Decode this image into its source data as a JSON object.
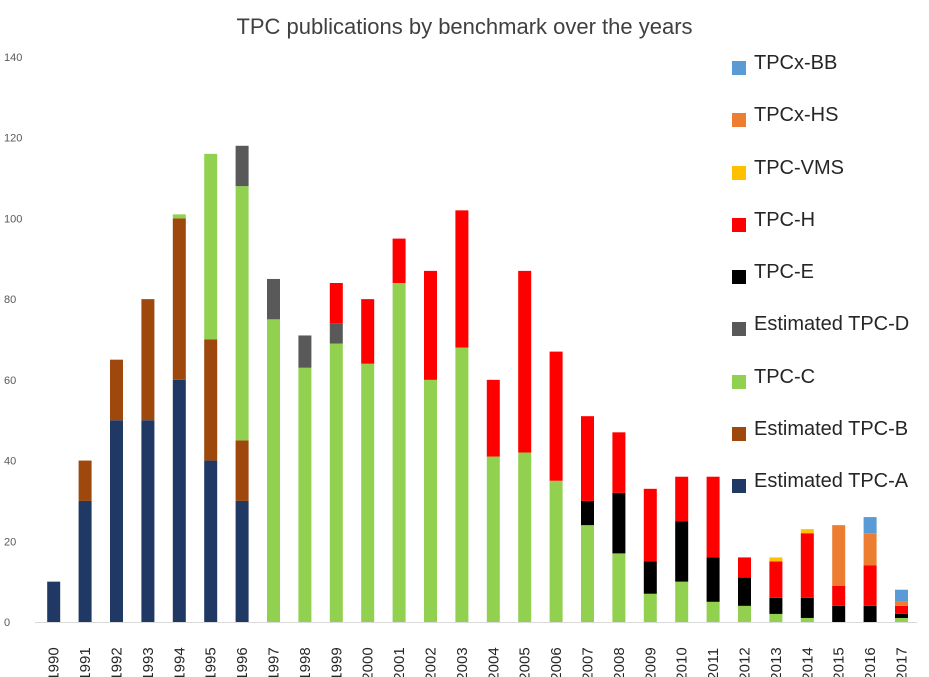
{
  "chart_data": {
    "type": "bar",
    "stacked": true,
    "title": "TPC publications by benchmark over the years",
    "xlabel": "",
    "ylabel": "",
    "ylim": [
      0,
      140
    ],
    "yticks": [
      0,
      20,
      40,
      60,
      80,
      100,
      120,
      140
    ],
    "grid": false,
    "legend_position": "right",
    "categories": [
      "1990",
      "1991",
      "1992",
      "1993",
      "1994",
      "1995",
      "1996",
      "1997",
      "1998",
      "1999",
      "2000",
      "2001",
      "2002",
      "2003",
      "2004",
      "2005",
      "2006",
      "2007",
      "2008",
      "2009",
      "2010",
      "2011",
      "2012",
      "2013",
      "2014",
      "2015",
      "2016",
      "2017"
    ],
    "series": [
      {
        "name": "Estimated TPC-A",
        "color": "#1f3864",
        "values": [
          10,
          30,
          50,
          50,
          60,
          40,
          30,
          0,
          0,
          0,
          0,
          0,
          0,
          0,
          0,
          0,
          0,
          0,
          0,
          0,
          0,
          0,
          0,
          0,
          0,
          0,
          0,
          0
        ]
      },
      {
        "name": "Estimated TPC-B",
        "color": "#9e480e",
        "values": [
          0,
          10,
          15,
          30,
          40,
          30,
          15,
          0,
          0,
          0,
          0,
          0,
          0,
          0,
          0,
          0,
          0,
          0,
          0,
          0,
          0,
          0,
          0,
          0,
          0,
          0,
          0,
          0
        ]
      },
      {
        "name": "TPC-C",
        "color": "#92d050",
        "values": [
          0,
          0,
          0,
          0,
          1,
          46,
          63,
          75,
          63,
          69,
          64,
          84,
          60,
          68,
          41,
          42,
          35,
          24,
          17,
          7,
          10,
          5,
          4,
          2,
          1,
          0,
          0,
          1
        ]
      },
      {
        "name": "Estimated TPC-D",
        "color": "#595959",
        "values": [
          0,
          0,
          0,
          0,
          0,
          0,
          10,
          10,
          8,
          5,
          0,
          0,
          0,
          0,
          0,
          0,
          0,
          0,
          0,
          0,
          0,
          0,
          0,
          0,
          0,
          0,
          0,
          0
        ]
      },
      {
        "name": "TPC-E",
        "color": "#000000",
        "values": [
          0,
          0,
          0,
          0,
          0,
          0,
          0,
          0,
          0,
          0,
          0,
          0,
          0,
          0,
          0,
          0,
          0,
          6,
          15,
          8,
          15,
          11,
          7,
          4,
          5,
          4,
          4,
          1
        ]
      },
      {
        "name": "TPC-H",
        "color": "#ff0000",
        "values": [
          0,
          0,
          0,
          0,
          0,
          0,
          0,
          0,
          0,
          10,
          16,
          11,
          27,
          34,
          19,
          45,
          32,
          21,
          15,
          18,
          11,
          20,
          5,
          9,
          16,
          5,
          10,
          2
        ]
      },
      {
        "name": "TPC-VMS",
        "color": "#ffc000",
        "values": [
          0,
          0,
          0,
          0,
          0,
          0,
          0,
          0,
          0,
          0,
          0,
          0,
          0,
          0,
          0,
          0,
          0,
          0,
          0,
          0,
          0,
          0,
          0,
          1,
          1,
          0,
          0,
          0
        ]
      },
      {
        "name": "TPCx-HS",
        "color": "#ed7d31",
        "values": [
          0,
          0,
          0,
          0,
          0,
          0,
          0,
          0,
          0,
          0,
          0,
          0,
          0,
          0,
          0,
          0,
          0,
          0,
          0,
          0,
          0,
          0,
          0,
          0,
          0,
          15,
          8,
          1
        ]
      },
      {
        "name": "TPCx-BB",
        "color": "#5b9bd5",
        "values": [
          0,
          0,
          0,
          0,
          0,
          0,
          0,
          0,
          0,
          0,
          0,
          0,
          0,
          0,
          0,
          0,
          0,
          0,
          0,
          0,
          0,
          0,
          0,
          0,
          0,
          0,
          4,
          3
        ]
      }
    ]
  }
}
